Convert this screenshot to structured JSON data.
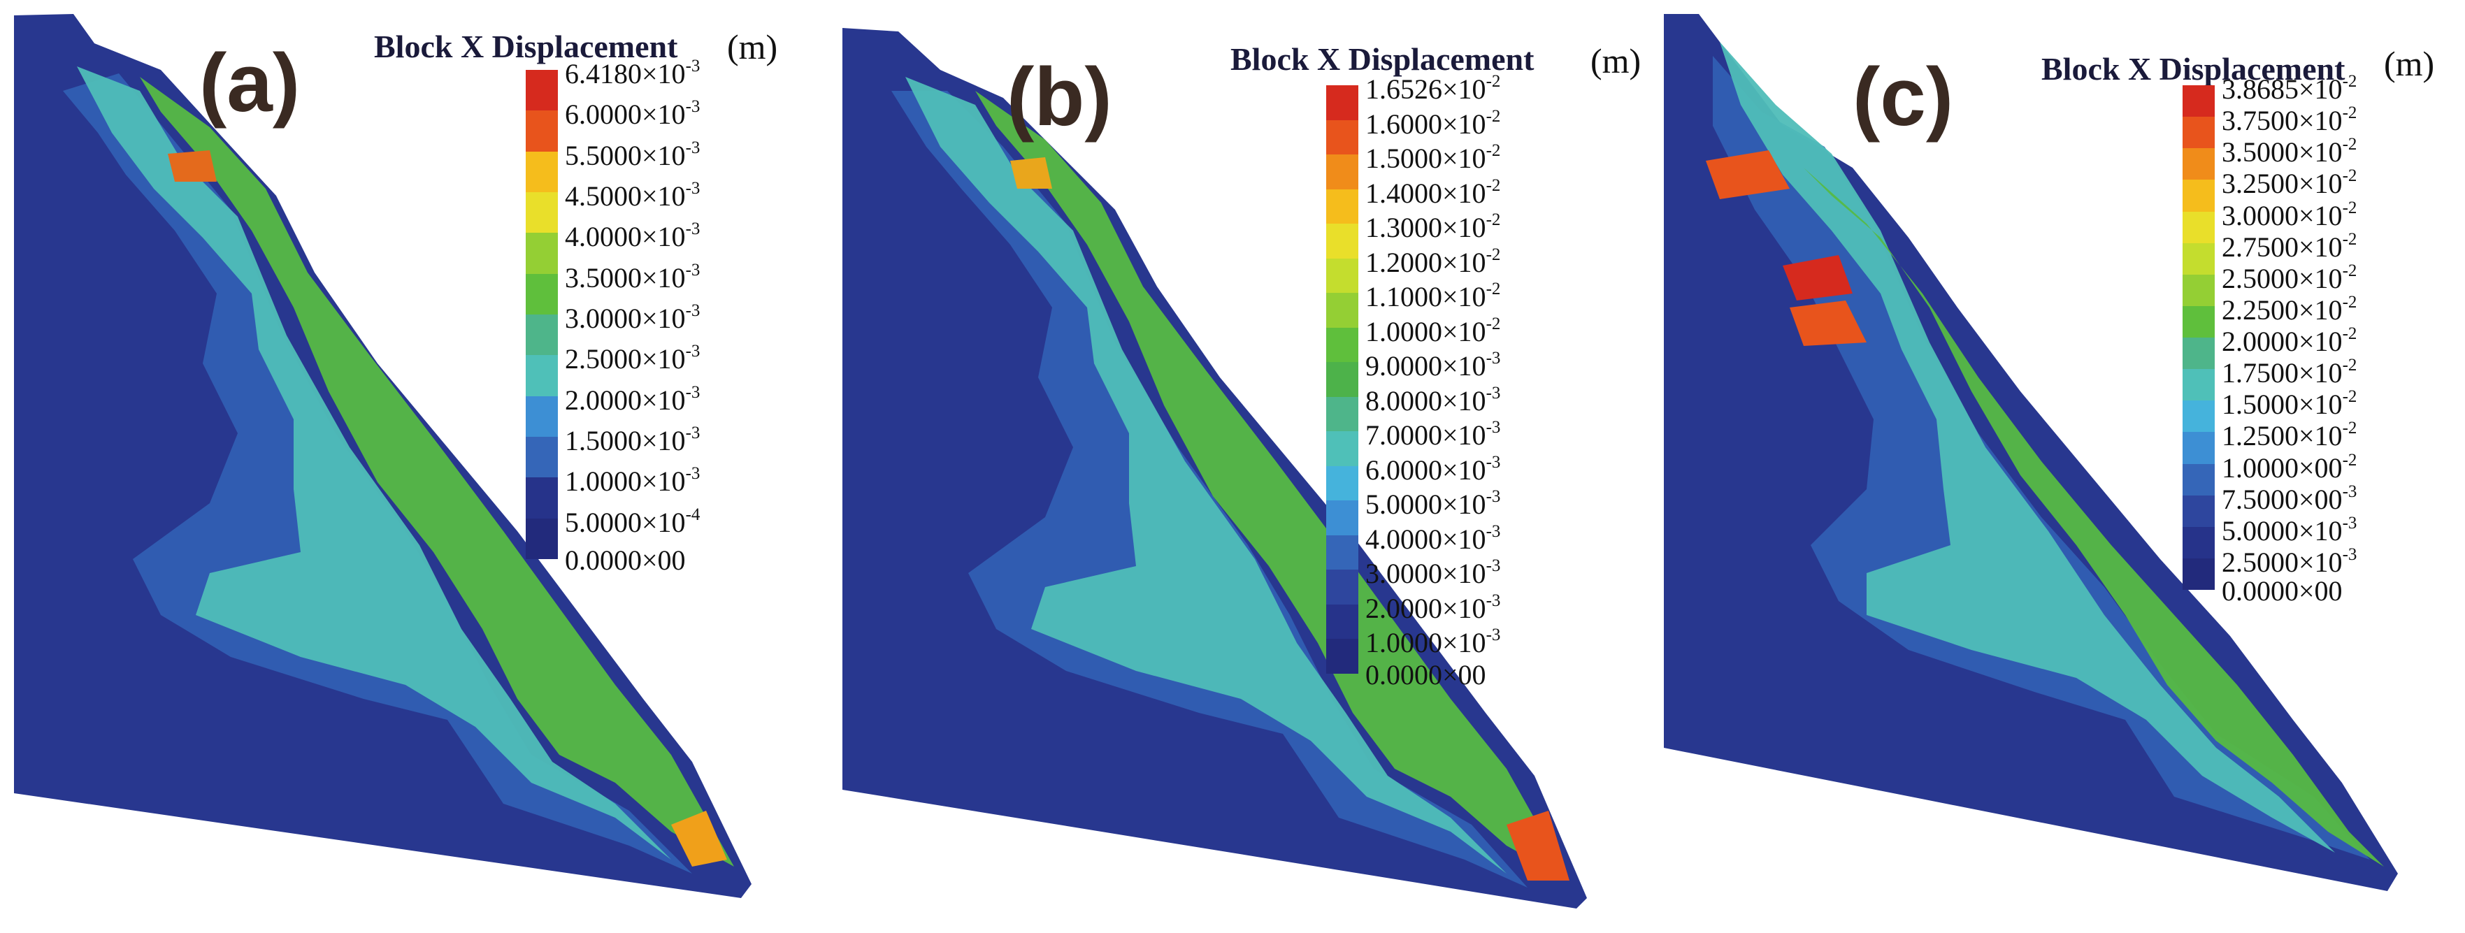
{
  "panels": [
    {
      "label": "(a)",
      "legend_title": "Block X Displacement",
      "unit": "(m)",
      "ticks": [
        {
          "mantissa": "6.4180×10",
          "exp": "-3"
        },
        {
          "mantissa": "6.0000×10",
          "exp": "-3"
        },
        {
          "mantissa": "5.5000×10",
          "exp": "-3"
        },
        {
          "mantissa": "4.5000×10",
          "exp": "-3"
        },
        {
          "mantissa": "4.0000×10",
          "exp": "-3"
        },
        {
          "mantissa": "3.5000×10",
          "exp": "-3"
        },
        {
          "mantissa": "3.0000×10",
          "exp": "-3"
        },
        {
          "mantissa": "2.5000×10",
          "exp": "-3"
        },
        {
          "mantissa": "2.0000×10",
          "exp": "-3"
        },
        {
          "mantissa": "1.5000×10",
          "exp": "-3"
        },
        {
          "mantissa": "1.0000×10",
          "exp": "-3"
        },
        {
          "mantissa": "5.0000×10",
          "exp": "-4"
        },
        {
          "mantissa": "0.0000×00",
          "exp": ""
        }
      ]
    },
    {
      "label": "(b)",
      "legend_title": "Block X Displacement",
      "unit": "(m)",
      "ticks": [
        {
          "mantissa": "1.6526×10",
          "exp": "-2"
        },
        {
          "mantissa": "1.6000×10",
          "exp": "-2"
        },
        {
          "mantissa": "1.5000×10",
          "exp": "-2"
        },
        {
          "mantissa": "1.4000×10",
          "exp": "-2"
        },
        {
          "mantissa": "1.3000×10",
          "exp": "-2"
        },
        {
          "mantissa": "1.2000×10",
          "exp": "-2"
        },
        {
          "mantissa": "1.1000×10",
          "exp": "-2"
        },
        {
          "mantissa": "1.0000×10",
          "exp": "-2"
        },
        {
          "mantissa": "9.0000×10",
          "exp": "-3"
        },
        {
          "mantissa": "8.0000×10",
          "exp": "-3"
        },
        {
          "mantissa": "7.0000×10",
          "exp": "-3"
        },
        {
          "mantissa": "6.0000×10",
          "exp": "-3"
        },
        {
          "mantissa": "5.0000×10",
          "exp": "-3"
        },
        {
          "mantissa": "4.0000×10",
          "exp": "-3"
        },
        {
          "mantissa": "3.0000×10",
          "exp": "-3"
        },
        {
          "mantissa": "2.0000×10",
          "exp": "-3"
        },
        {
          "mantissa": "1.0000×10",
          "exp": "-3"
        },
        {
          "mantissa": "0.0000×00",
          "exp": ""
        }
      ]
    },
    {
      "label": "(c)",
      "legend_title": "Block X Displacement",
      "unit": "(m)",
      "ticks": [
        {
          "mantissa": "3.8685×10",
          "exp": "-2"
        },
        {
          "mantissa": "3.7500×10",
          "exp": "-2"
        },
        {
          "mantissa": "3.5000×10",
          "exp": "-2"
        },
        {
          "mantissa": "3.2500×10",
          "exp": "-2"
        },
        {
          "mantissa": "3.0000×10",
          "exp": "-2"
        },
        {
          "mantissa": "2.7500×10",
          "exp": "-2"
        },
        {
          "mantissa": "2.5000×10",
          "exp": "-2"
        },
        {
          "mantissa": "2.2500×10",
          "exp": "-2"
        },
        {
          "mantissa": "2.0000×10",
          "exp": "-2"
        },
        {
          "mantissa": "1.7500×10",
          "exp": "-2"
        },
        {
          "mantissa": "1.5000×10",
          "exp": "-2"
        },
        {
          "mantissa": "1.2500×10",
          "exp": "-2"
        },
        {
          "mantissa": "1.0000×00",
          "exp": "-2"
        },
        {
          "mantissa": "7.5000×00",
          "exp": "-3"
        },
        {
          "mantissa": "5.0000×10",
          "exp": "-3"
        },
        {
          "mantissa": "2.5000×10",
          "exp": "-3"
        },
        {
          "mantissa": "0.0000×00",
          "exp": ""
        }
      ]
    }
  ],
  "colors": {
    "scale": [
      "#d62a1e",
      "#e8541c",
      "#f08c1a",
      "#f5bd1c",
      "#e9df2a",
      "#c4dd2e",
      "#94cf34",
      "#5fbf3c",
      "#4db24a",
      "#4eb58a",
      "#4fc0b8",
      "#45b3dc",
      "#3d8fd4",
      "#3566b8",
      "#2e469e",
      "#26338a",
      "#222a7c"
    ],
    "deep": "#27338c",
    "mesh": "#1b2130"
  }
}
